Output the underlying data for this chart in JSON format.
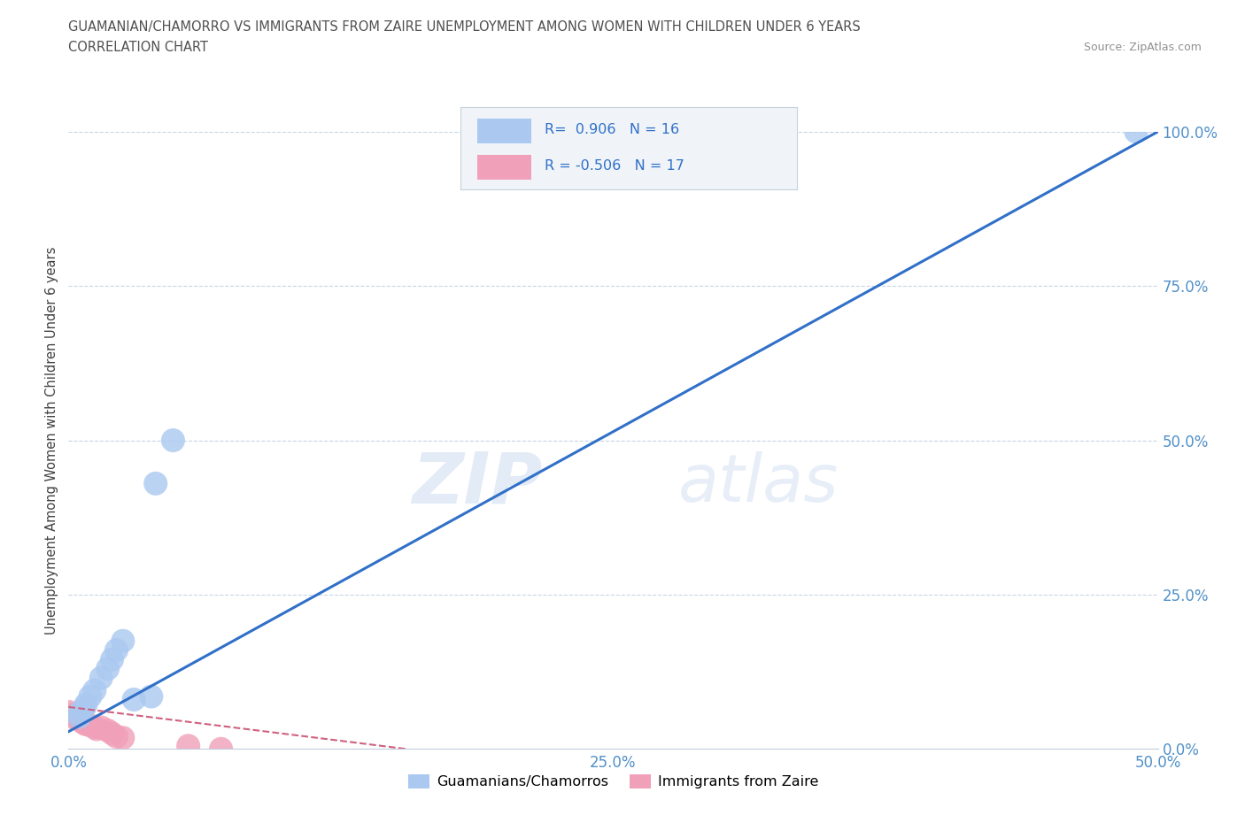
{
  "title_line1": "GUAMANIAN/CHAMORRO VS IMMIGRANTS FROM ZAIRE UNEMPLOYMENT AMONG WOMEN WITH CHILDREN UNDER 6 YEARS",
  "title_line2": "CORRELATION CHART",
  "source_text": "Source: ZipAtlas.com",
  "ylabel": "Unemployment Among Women with Children Under 6 years",
  "xlim": [
    0.0,
    0.5
  ],
  "ylim": [
    0.0,
    1.0
  ],
  "ytick_labels": [
    "0.0%",
    "25.0%",
    "50.0%",
    "75.0%",
    "100.0%"
  ],
  "ytick_vals": [
    0.0,
    0.25,
    0.5,
    0.75,
    1.0
  ],
  "xtick_vals": [
    0.0,
    0.05,
    0.1,
    0.15,
    0.2,
    0.25,
    0.3,
    0.35,
    0.4,
    0.45,
    0.5
  ],
  "xtick_labels": [
    "0.0%",
    "",
    "",
    "",
    "",
    "25.0%",
    "",
    "",
    "",
    "",
    "50.0%"
  ],
  "blue_points": [
    [
      0.005,
      0.052
    ],
    [
      0.005,
      0.058
    ],
    [
      0.007,
      0.065
    ],
    [
      0.008,
      0.072
    ],
    [
      0.01,
      0.085
    ],
    [
      0.012,
      0.095
    ],
    [
      0.015,
      0.115
    ],
    [
      0.018,
      0.13
    ],
    [
      0.02,
      0.145
    ],
    [
      0.022,
      0.16
    ],
    [
      0.025,
      0.175
    ],
    [
      0.03,
      0.08
    ],
    [
      0.038,
      0.085
    ],
    [
      0.048,
      0.5
    ],
    [
      0.04,
      0.43
    ],
    [
      0.49,
      1.0
    ]
  ],
  "pink_points": [
    [
      0.0,
      0.06
    ],
    [
      0.002,
      0.055
    ],
    [
      0.003,
      0.05
    ],
    [
      0.005,
      0.048
    ],
    [
      0.006,
      0.045
    ],
    [
      0.007,
      0.042
    ],
    [
      0.008,
      0.04
    ],
    [
      0.01,
      0.038
    ],
    [
      0.012,
      0.035
    ],
    [
      0.013,
      0.032
    ],
    [
      0.015,
      0.035
    ],
    [
      0.018,
      0.03
    ],
    [
      0.02,
      0.025
    ],
    [
      0.022,
      0.02
    ],
    [
      0.025,
      0.018
    ],
    [
      0.055,
      0.005
    ],
    [
      0.07,
      -0.005
    ]
  ],
  "blue_line_x": [
    0.0,
    0.5
  ],
  "blue_line_y": [
    0.028,
    1.0
  ],
  "pink_line_x": [
    0.0,
    0.155
  ],
  "pink_line_y": [
    0.068,
    0.0
  ],
  "blue_color": "#aac8f0",
  "pink_color": "#f0a0b8",
  "blue_line_color": "#3070c8",
  "pink_line_color": "#d06080",
  "r_blue": "0.906",
  "n_blue": "16",
  "r_pink": "-0.506",
  "n_pink": "17",
  "legend_label_blue": "Guamanians/Chamorros",
  "legend_label_pink": "Immigrants from Zaire",
  "watermark_zip": "ZIP",
  "watermark_atlas": "atlas",
  "background_color": "#ffffff",
  "grid_color": "#c8d4e8",
  "axis_label_color": "#5090c8",
  "title_color": "#505050"
}
